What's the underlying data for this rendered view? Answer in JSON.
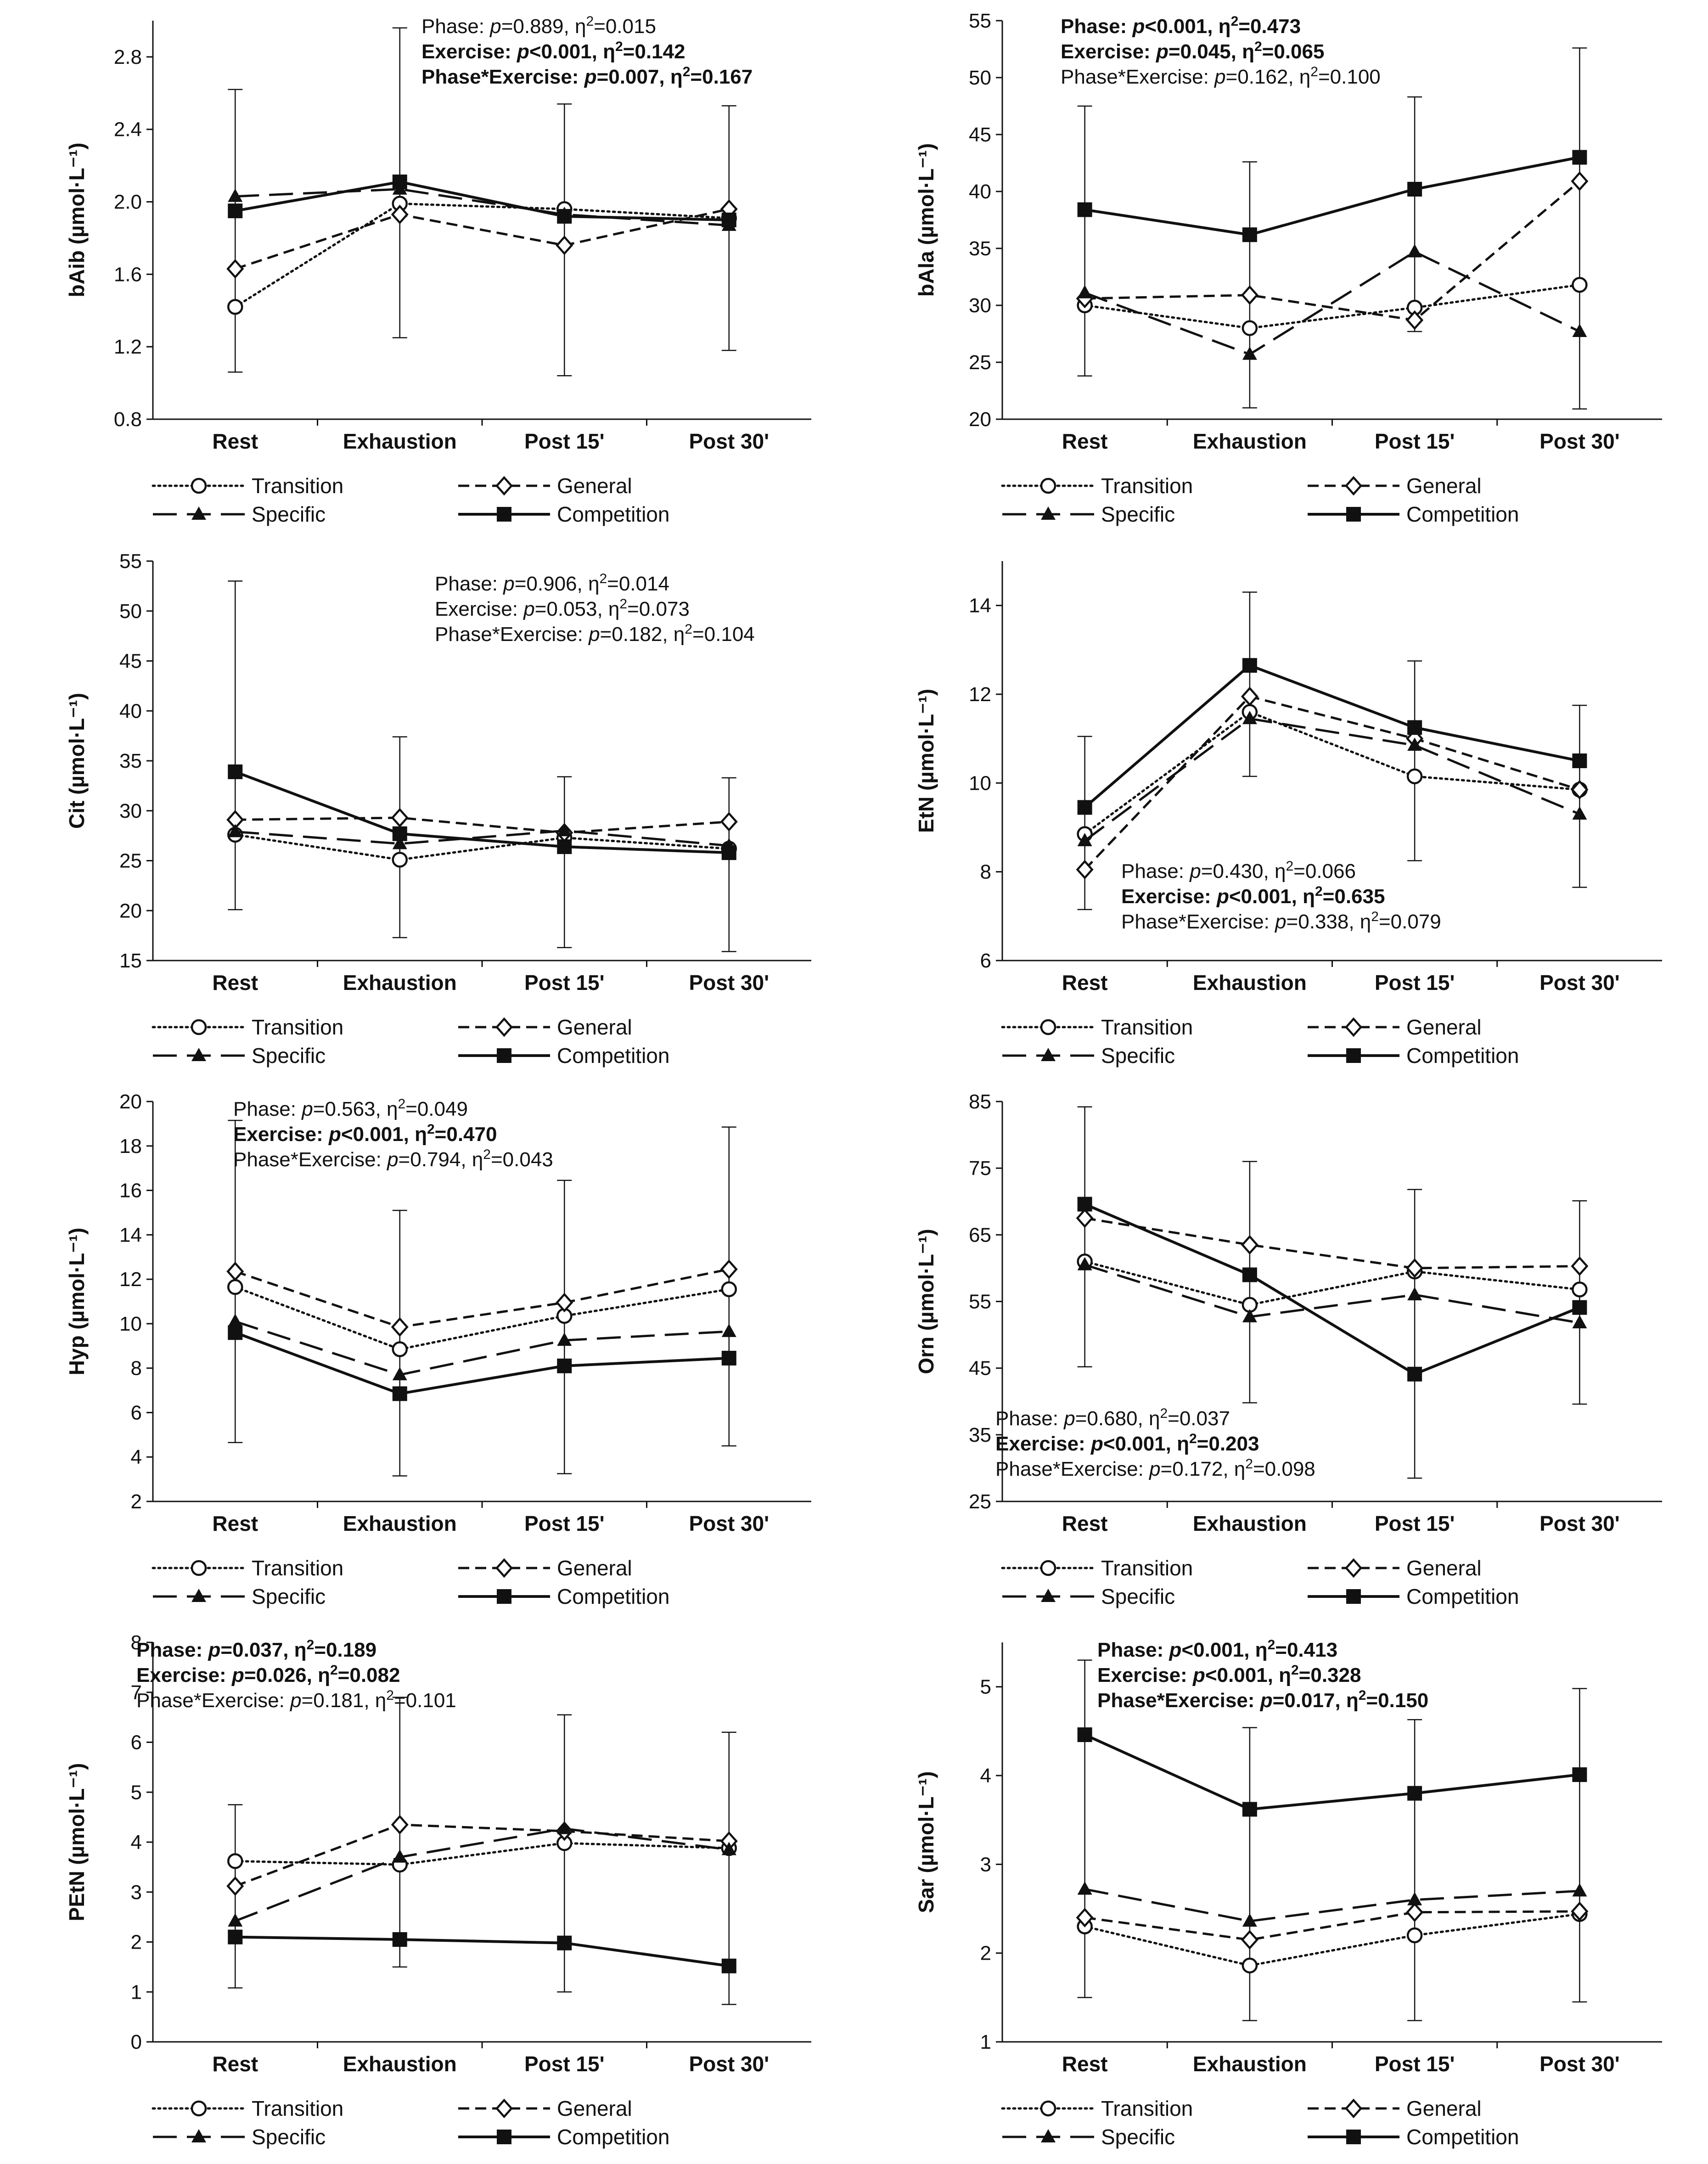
{
  "figure": {
    "legend": [
      {
        "name": "Transition",
        "style": "dotted",
        "marker": "open-circle"
      },
      {
        "name": "General",
        "style": "short-dash",
        "marker": "open-diamond"
      },
      {
        "name": "Specific",
        "style": "long-dash",
        "marker": "filled-triangle"
      },
      {
        "name": "Competition",
        "style": "solid",
        "marker": "filled-square"
      }
    ],
    "colors": {
      "ink": "#111111",
      "background": "#ffffff"
    }
  },
  "chart_data": [
    {
      "type": "line",
      "ylabel": "bAib (µmol·L⁻¹)",
      "categories": [
        "Rest",
        "Exhaustion",
        "Post 15'",
        "Post 30'"
      ],
      "ylim": [
        0.8,
        3.0
      ],
      "yticks": [
        "0.8",
        "1.2",
        "1.6",
        "2.0",
        "2.4",
        "2.8"
      ],
      "stats": [
        {
          "label": "Phase:",
          "p": "=0.889",
          "eta": "=0.015",
          "bold": false
        },
        {
          "label": "Exercise:",
          "p": "<0.001",
          "eta": "=0.142",
          "bold": true
        },
        {
          "label": "Phase*Exercise:",
          "p": "=0.007",
          "eta": "=0.167",
          "bold": true
        }
      ],
      "series": [
        {
          "name": "Transition",
          "values": [
            1.42,
            1.99,
            1.96,
            1.91
          ]
        },
        {
          "name": "General",
          "values": [
            1.63,
            1.93,
            1.76,
            1.96
          ]
        },
        {
          "name": "Specific",
          "values": [
            2.03,
            2.07,
            1.93,
            1.87
          ]
        },
        {
          "name": "Competition",
          "values": [
            1.95,
            2.11,
            1.92,
            1.9
          ]
        }
      ],
      "error_bars": [
        {
          "low": 1.06,
          "high": 2.62
        },
        {
          "low": 1.25,
          "high": 2.96
        },
        {
          "low": 1.04,
          "high": 2.54
        },
        {
          "low": 1.18,
          "high": 2.53
        }
      ]
    },
    {
      "type": "line",
      "ylabel": "bAla (µmol·L⁻¹)",
      "categories": [
        "Rest",
        "Exhaustion",
        "Post 15'",
        "Post 30'"
      ],
      "ylim": [
        20,
        55
      ],
      "yticks": [
        "20",
        "25",
        "30",
        "35",
        "40",
        "45",
        "50",
        "55"
      ],
      "stats": [
        {
          "label": "Phase:",
          "p": "<0.001",
          "eta": "=0.473",
          "bold": true
        },
        {
          "label": "Exercise:",
          "p": "=0.045",
          "eta": "=0.065",
          "bold": true
        },
        {
          "label": "Phase*Exercise:",
          "p": "=0.162",
          "eta": "=0.100",
          "bold": false
        }
      ],
      "series": [
        {
          "name": "Transition",
          "values": [
            30.0,
            28.0,
            29.8,
            31.8
          ]
        },
        {
          "name": "General",
          "values": [
            30.6,
            30.9,
            28.7,
            40.9
          ]
        },
        {
          "name": "Specific",
          "values": [
            31.1,
            25.7,
            34.7,
            27.7
          ]
        },
        {
          "name": "Competition",
          "values": [
            38.4,
            36.2,
            40.2,
            43.0
          ]
        }
      ],
      "error_bars": [
        {
          "low": 23.8,
          "high": 47.5
        },
        {
          "low": 21.0,
          "high": 42.6
        },
        {
          "low": 27.7,
          "high": 48.3
        },
        {
          "low": 20.9,
          "high": 52.6
        }
      ]
    },
    {
      "type": "line",
      "ylabel": "Cit (µmol·L⁻¹)",
      "categories": [
        "Rest",
        "Exhaustion",
        "Post 15'",
        "Post 30'"
      ],
      "ylim": [
        15,
        55
      ],
      "yticks": [
        "15",
        "20",
        "25",
        "30",
        "35",
        "40",
        "45",
        "50",
        "55"
      ],
      "stats": [
        {
          "label": "Phase:",
          "p": "=0.906",
          "eta": "=0.014",
          "bold": false
        },
        {
          "label": "Exercise:",
          "p": "=0.053",
          "eta": "=0.073",
          "bold": false
        },
        {
          "label": "Phase*Exercise:",
          "p": "=0.182",
          "eta": "=0.104",
          "bold": false
        }
      ],
      "series": [
        {
          "name": "Transition",
          "values": [
            27.6,
            25.1,
            27.3,
            26.2
          ]
        },
        {
          "name": "General",
          "values": [
            29.1,
            29.3,
            27.8,
            28.9
          ]
        },
        {
          "name": "Specific",
          "values": [
            27.9,
            26.7,
            28.0,
            26.5
          ]
        },
        {
          "name": "Competition",
          "values": [
            33.9,
            27.7,
            26.4,
            25.8
          ]
        }
      ],
      "error_bars": [
        {
          "low": 20.1,
          "high": 53.0
        },
        {
          "low": 17.3,
          "high": 37.4
        },
        {
          "low": 16.3,
          "high": 33.4
        },
        {
          "low": 15.9,
          "high": 33.3
        }
      ]
    },
    {
      "type": "line",
      "ylabel": "EtN (µmol·L⁻¹)",
      "categories": [
        "Rest",
        "Exhaustion",
        "Post 15'",
        "Post 30'"
      ],
      "ylim": [
        6,
        15
      ],
      "yticks": [
        "6",
        "8",
        "10",
        "12",
        "14"
      ],
      "stats": [
        {
          "label": "Phase:",
          "p": "=0.430",
          "eta": "=0.066",
          "bold": false
        },
        {
          "label": "Exercise:",
          "p": "<0.001",
          "eta": "=0.635",
          "bold": true
        },
        {
          "label": "Phase*Exercise:",
          "p": "=0.338",
          "eta": "=0.079",
          "bold": false
        }
      ],
      "series": [
        {
          "name": "Transition",
          "values": [
            8.85,
            11.6,
            10.15,
            9.85
          ]
        },
        {
          "name": "General",
          "values": [
            8.05,
            11.95,
            11.0,
            9.85
          ]
        },
        {
          "name": "Specific",
          "values": [
            8.7,
            11.45,
            10.85,
            9.3
          ]
        },
        {
          "name": "Competition",
          "values": [
            9.45,
            12.65,
            11.25,
            10.5
          ]
        }
      ],
      "error_bars": [
        {
          "low": 7.15,
          "high": 11.05
        },
        {
          "low": 10.15,
          "high": 14.3
        },
        {
          "low": 8.25,
          "high": 12.75
        },
        {
          "low": 7.65,
          "high": 11.75
        }
      ]
    },
    {
      "type": "line",
      "ylabel": "Hyp (µmol·L⁻¹)",
      "categories": [
        "Rest",
        "Exhaustion",
        "Post 15'",
        "Post 30'"
      ],
      "ylim": [
        2,
        20
      ],
      "yticks": [
        "2",
        "4",
        "6",
        "8",
        "10",
        "12",
        "14",
        "16",
        "18",
        "20"
      ],
      "stats": [
        {
          "label": "Phase:",
          "p": "=0.563",
          "eta": "=0.049",
          "bold": false
        },
        {
          "label": "Exercise:",
          "p": "<0.001",
          "eta": "=0.470",
          "bold": true
        },
        {
          "label": "Phase*Exercise:",
          "p": "=0.794",
          "eta": "=0.043",
          "bold": false
        }
      ],
      "series": [
        {
          "name": "Transition",
          "values": [
            11.65,
            8.85,
            10.35,
            11.55
          ]
        },
        {
          "name": "General",
          "values": [
            12.35,
            9.85,
            10.95,
            12.45
          ]
        },
        {
          "name": "Specific",
          "values": [
            10.1,
            7.7,
            9.25,
            9.65
          ]
        },
        {
          "name": "Competition",
          "values": [
            9.6,
            6.85,
            8.1,
            8.45
          ]
        }
      ],
      "error_bars": [
        {
          "low": 4.65,
          "high": 19.15
        },
        {
          "low": 3.15,
          "high": 15.1
        },
        {
          "low": 3.25,
          "high": 16.45
        },
        {
          "low": 4.5,
          "high": 18.85
        }
      ]
    },
    {
      "type": "line",
      "ylabel": "Orn (µmol·L⁻¹)",
      "categories": [
        "Rest",
        "Exhaustion",
        "Post 15'",
        "Post 30'"
      ],
      "ylim": [
        25,
        85
      ],
      "yticks": [
        "25",
        "35",
        "45",
        "55",
        "65",
        "75",
        "85"
      ],
      "stats": [
        {
          "label": "Phase:",
          "p": "=0.680",
          "eta": "=0.037",
          "bold": false
        },
        {
          "label": "Exercise:",
          "p": "<0.001",
          "eta": "=0.203",
          "bold": true
        },
        {
          "label": "Phase*Exercise:",
          "p": "=0.172",
          "eta": "=0.098",
          "bold": false
        }
      ],
      "series": [
        {
          "name": "Transition",
          "values": [
            61.0,
            54.5,
            59.5,
            56.8
          ]
        },
        {
          "name": "General",
          "values": [
            67.5,
            63.5,
            60.0,
            60.3
          ]
        },
        {
          "name": "Specific",
          "values": [
            60.5,
            52.7,
            56.0,
            51.8
          ]
        },
        {
          "name": "Competition",
          "values": [
            69.6,
            59.0,
            44.1,
            54.1
          ]
        }
      ],
      "error_bars": [
        {
          "low": 45.2,
          "high": 84.2
        },
        {
          "low": 39.8,
          "high": 76.0
        },
        {
          "low": 28.5,
          "high": 71.8
        },
        {
          "low": 39.6,
          "high": 70.1
        }
      ]
    },
    {
      "type": "line",
      "ylabel": "PEtN (µmol·L⁻¹)",
      "categories": [
        "Rest",
        "Exhaustion",
        "Post 15'",
        "Post 30'"
      ],
      "ylim": [
        0,
        8
      ],
      "yticks": [
        "0",
        "1",
        "2",
        "3",
        "4",
        "5",
        "6",
        "7",
        "8"
      ],
      "stats": [
        {
          "label": "Phase:",
          "p": "=0.037",
          "eta": "=0.189",
          "bold": true
        },
        {
          "label": "Exercise:",
          "p": "=0.026",
          "eta": "=0.082",
          "bold": true
        },
        {
          "label": "Phase*Exercise:",
          "p": "=0.181",
          "eta": "=0.101",
          "bold": false
        }
      ],
      "series": [
        {
          "name": "Transition",
          "values": [
            3.62,
            3.55,
            3.98,
            3.88
          ]
        },
        {
          "name": "General",
          "values": [
            3.12,
            4.35,
            4.22,
            4.02
          ]
        },
        {
          "name": "Specific",
          "values": [
            2.42,
            3.7,
            4.27,
            3.85
          ]
        },
        {
          "name": "Competition",
          "values": [
            2.1,
            2.05,
            1.98,
            1.52
          ]
        }
      ],
      "error_bars": [
        {
          "low": 1.08,
          "high": 4.75
        },
        {
          "low": 1.5,
          "high": 6.9
        },
        {
          "low": 1.0,
          "high": 6.55
        },
        {
          "low": 0.75,
          "high": 6.2
        }
      ]
    },
    {
      "type": "line",
      "ylabel": "Sar (µmol·L⁻¹)",
      "categories": [
        "Rest",
        "Exhaustion",
        "Post 15'",
        "Post 30'"
      ],
      "ylim": [
        1,
        5.5
      ],
      "yticks": [
        "1",
        "2",
        "3",
        "4",
        "5"
      ],
      "stats": [
        {
          "label": "Phase:",
          "p": "<0.001",
          "eta": "=0.413",
          "bold": true
        },
        {
          "label": "Exercise:",
          "p": "<0.001",
          "eta": "=0.328",
          "bold": true
        },
        {
          "label": "Phase*Exercise:",
          "p": "=0.017",
          "eta": "=0.150",
          "bold": true
        }
      ],
      "series": [
        {
          "name": "Transition",
          "values": [
            2.3,
            1.86,
            2.2,
            2.44
          ]
        },
        {
          "name": "General",
          "values": [
            2.4,
            2.15,
            2.46,
            2.47
          ]
        },
        {
          "name": "Specific",
          "values": [
            2.72,
            2.36,
            2.6,
            2.7
          ]
        },
        {
          "name": "Competition",
          "values": [
            4.46,
            3.62,
            3.8,
            4.01
          ]
        }
      ],
      "error_bars": [
        {
          "low": 1.5,
          "high": 5.3
        },
        {
          "low": 1.24,
          "high": 4.54
        },
        {
          "low": 1.24,
          "high": 4.63
        },
        {
          "low": 1.45,
          "high": 4.98
        }
      ]
    }
  ]
}
